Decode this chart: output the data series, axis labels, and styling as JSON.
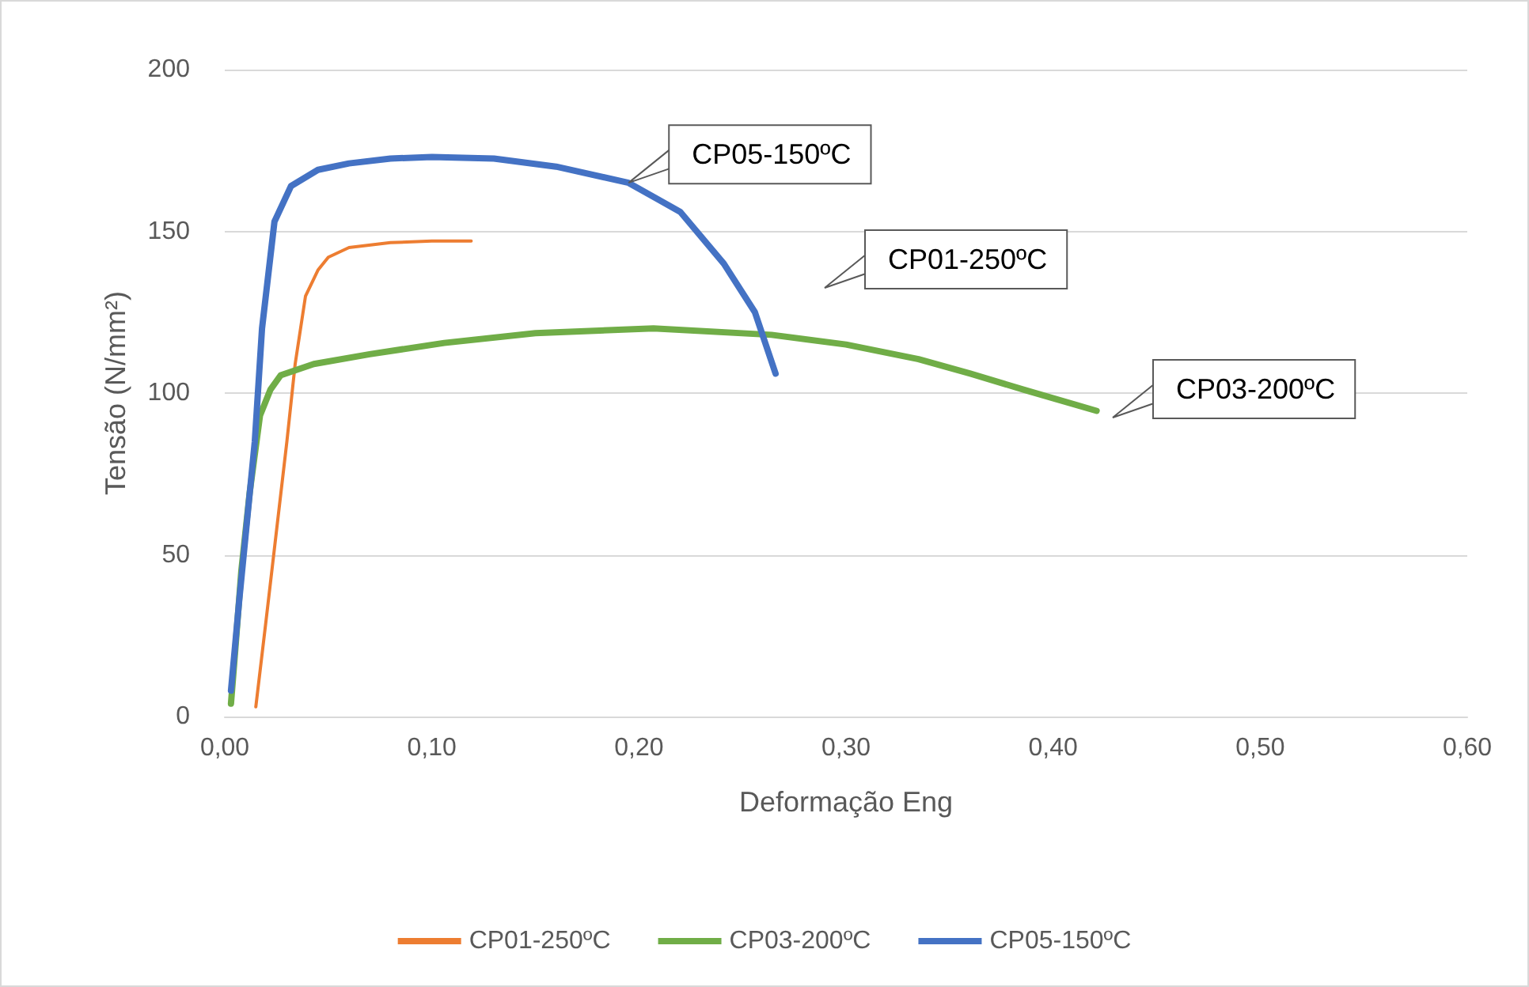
{
  "chart_data": {
    "type": "line",
    "xlabel": "Deformação Eng",
    "ylabel": "Tensão (N/mm²)",
    "xlim": [
      0,
      0.6
    ],
    "xticks": [
      {
        "value": 0,
        "label": "0,00"
      },
      {
        "value": 0.1,
        "label": "0,10"
      },
      {
        "value": 0.2,
        "label": "0,20"
      },
      {
        "value": 0.3,
        "label": "0,30"
      },
      {
        "value": 0.4,
        "label": "0,40"
      },
      {
        "value": 0.5,
        "label": "0,50"
      },
      {
        "value": 0.6,
        "label": "0,60"
      }
    ],
    "ylim": [
      0,
      200
    ],
    "yticks": [
      0,
      50,
      100,
      150,
      200
    ],
    "grid": "y",
    "legend": "bottom",
    "marker": "none",
    "line_style": "solid",
    "series": [
      {
        "name": "CP01-250ºC",
        "color": "#ed7d31",
        "x": [
          0.015,
          0.02,
          0.024,
          0.03,
          0.034,
          0.039,
          0.045,
          0.05,
          0.06,
          0.08,
          0.1,
          0.119
        ],
        "values": [
          3,
          30,
          52,
          85,
          109,
          130,
          138,
          142,
          145,
          146.5,
          147,
          147
        ]
      },
      {
        "name": "CP03-200ºC",
        "color": "#70ad47",
        "x": [
          0.003,
          0.005,
          0.008,
          0.012,
          0.017,
          0.022,
          0.027,
          0.043,
          0.07,
          0.106,
          0.15,
          0.207,
          0.264,
          0.3,
          0.335,
          0.36,
          0.386,
          0.421
        ],
        "values": [
          4,
          20,
          45,
          69,
          93,
          101,
          105.5,
          109,
          112,
          115.5,
          118.5,
          120,
          118,
          115,
          110.5,
          106,
          101,
          94.5
        ]
      },
      {
        "name": "CP05-150ºC",
        "color": "#4472c4",
        "x": [
          0.003,
          0.007,
          0.0145,
          0.018,
          0.024,
          0.032,
          0.045,
          0.06,
          0.08,
          0.1,
          0.13,
          0.16,
          0.195,
          0.22,
          0.241,
          0.256,
          0.266
        ],
        "values": [
          8,
          36,
          85,
          120,
          153,
          164,
          169,
          171,
          172.5,
          173,
          172.5,
          170,
          165,
          156,
          140,
          125,
          106
        ]
      }
    ],
    "annotations": [
      {
        "text": "CP05-150ºC",
        "x": 0.195,
        "y": 165
      },
      "CP01-250ºC",
      "CP03-200ºC"
    ]
  }
}
